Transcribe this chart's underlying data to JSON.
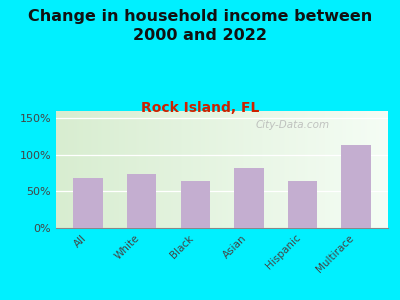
{
  "title": "Change in household income between\n2000 and 2022",
  "subtitle": "Rock Island, FL",
  "categories": [
    "All",
    "White",
    "Black",
    "Asian",
    "Hispanic",
    "Multirace"
  ],
  "values": [
    68,
    74,
    64,
    82,
    64,
    113
  ],
  "bar_color": "#c4aed0",
  "background_outer": "#00f0ff",
  "title_fontsize": 11.5,
  "subtitle_fontsize": 10,
  "subtitle_color": "#cc2200",
  "title_color": "#111111",
  "tick_color": "#444444",
  "ylim": [
    0,
    160
  ],
  "yticks": [
    0,
    50,
    100,
    150
  ],
  "ytick_labels": [
    "0%",
    "50%",
    "100%",
    "150%"
  ],
  "watermark": "City-Data.com",
  "watermark_color": "#b0b0b0",
  "grid_color": "#ffffff",
  "chart_bg_left": "#d8edd0",
  "chart_bg_right": "#f5fdf5"
}
